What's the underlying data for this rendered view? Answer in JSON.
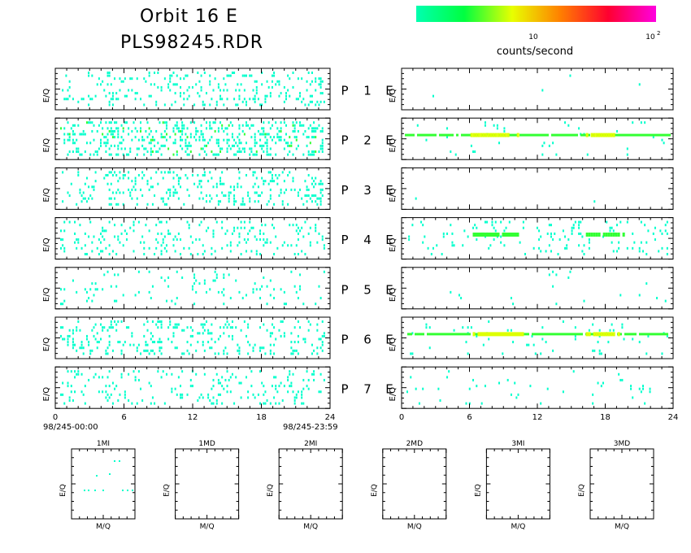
{
  "header": {
    "title_line1": "Orbit 16 E",
    "title_line2": "PLS98245.RDR"
  },
  "colorbar": {
    "colors": [
      "#00ffb0",
      "#00ff40",
      "#e8ff00",
      "#ff8000",
      "#ff0030",
      "#ff00e0"
    ],
    "tick_labels": [
      "10",
      "10",
      "2"
    ],
    "label": "counts/second"
  },
  "chart_data": {
    "type": "heatmap",
    "y_label": "E/Q",
    "x_ticks": [
      "0",
      "6",
      "12",
      "18",
      "24"
    ],
    "x_range": [
      0,
      24
    ],
    "time_start": "98/245-00:00",
    "time_end": "98/245-23:59",
    "pair_label_letter": "P",
    "pair_label_suffix": "E",
    "rows": [
      {
        "id": "1",
        "left_density": 0.28,
        "right_density": 0.01,
        "right_bands": []
      },
      {
        "id": "2",
        "left_density": 0.55,
        "right_density": 0.03,
        "right_bands": [
          {
            "start": 0,
            "end": 24,
            "level": "low"
          },
          {
            "start": 5.8,
            "end": 10.5,
            "level": "high"
          },
          {
            "start": 16,
            "end": 19,
            "level": "high"
          }
        ]
      },
      {
        "id": "3",
        "left_density": 0.32,
        "right_density": 0.005,
        "right_bands": []
      },
      {
        "id": "4",
        "left_density": 0.24,
        "right_density": 0.14,
        "right_bands": [
          {
            "start": 6,
            "end": 10.5,
            "level": "mid"
          },
          {
            "start": 16,
            "end": 20,
            "level": "mid"
          }
        ]
      },
      {
        "id": "5",
        "left_density": 0.12,
        "right_density": 0.02,
        "right_bands": []
      },
      {
        "id": "6",
        "left_density": 0.3,
        "right_density": 0.08,
        "right_bands": [
          {
            "start": 0,
            "end": 24,
            "level": "low"
          },
          {
            "start": 6,
            "end": 11,
            "level": "high"
          },
          {
            "start": 16,
            "end": 19.5,
            "level": "high"
          }
        ]
      },
      {
        "id": "7",
        "left_density": 0.25,
        "right_density": 0.04,
        "right_bands": []
      }
    ],
    "small_panels": {
      "x_label": "M/Q",
      "y_label": "E/Q",
      "titles": [
        "1MI",
        "1MD",
        "2MI",
        "2MD",
        "3MI",
        "3MD"
      ]
    }
  }
}
